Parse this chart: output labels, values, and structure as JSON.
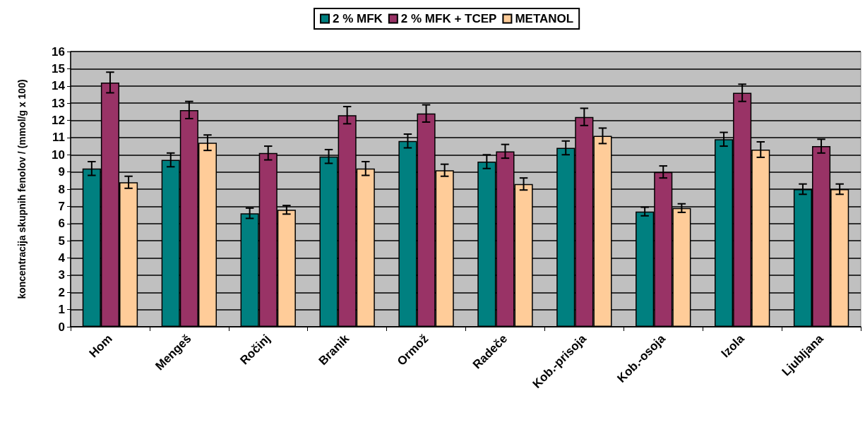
{
  "chart_data": {
    "type": "bar",
    "ylabel": "koncentracija skupnih fenolov / (mmol/g x 100)",
    "categories": [
      "Hom",
      "Mengeš",
      "Ročinj",
      "Branik",
      "Ormož",
      "Radeče",
      "Kob.-prisoja",
      "Kob.-osoja",
      "Izola",
      "Ljubljana"
    ],
    "series": [
      {
        "name": "2 % MFK",
        "color": "#008080",
        "values": [
          9.2,
          9.7,
          6.6,
          9.9,
          10.8,
          9.6,
          10.4,
          6.7,
          10.9,
          8.0
        ],
        "errors": [
          0.4,
          0.4,
          0.3,
          0.4,
          0.4,
          0.4,
          0.4,
          0.25,
          0.4,
          0.3
        ]
      },
      {
        "name": "2 % MFK + TCEP",
        "color": "#993366",
        "values": [
          14.2,
          12.6,
          10.1,
          12.3,
          12.4,
          10.2,
          12.2,
          9.0,
          13.6,
          10.5
        ],
        "errors": [
          0.6,
          0.5,
          0.4,
          0.5,
          0.5,
          0.4,
          0.5,
          0.35,
          0.5,
          0.4
        ]
      },
      {
        "name": "METANOL",
        "color": "#ffcc99",
        "values": [
          8.4,
          10.7,
          6.8,
          9.2,
          9.1,
          8.3,
          11.1,
          6.9,
          10.3,
          8.0
        ],
        "errors": [
          0.35,
          0.45,
          0.25,
          0.4,
          0.35,
          0.35,
          0.45,
          0.25,
          0.45,
          0.3
        ]
      }
    ],
    "ylim": [
      0,
      16
    ],
    "yticks": [
      0,
      1,
      2,
      3,
      4,
      5,
      6,
      7,
      8,
      9,
      10,
      11,
      12,
      13,
      14,
      15,
      16
    ],
    "grid": "y",
    "legend": "top"
  }
}
